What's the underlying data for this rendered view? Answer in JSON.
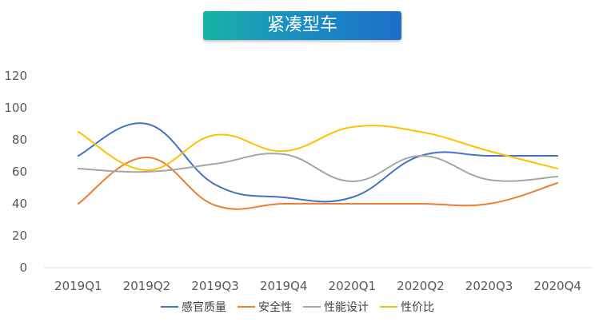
{
  "title": "紧凑型车",
  "chart_data": {
    "type": "line",
    "smooth": true,
    "categories": [
      "2019Q1",
      "2019Q2",
      "2019Q3",
      "2019Q4",
      "2020Q1",
      "2020Q2",
      "2020Q3",
      "2020Q4"
    ],
    "ylim": [
      0,
      120
    ],
    "yticks": [
      0,
      20,
      40,
      60,
      80,
      100,
      120
    ],
    "grid": false,
    "legend_position": "bottom",
    "series": [
      {
        "name": "感官质量",
        "color": "#4472c4",
        "values": [
          70,
          90,
          52,
          44,
          44,
          70,
          70,
          70
        ]
      },
      {
        "name": "安全性",
        "color": "#ed7d31",
        "values": [
          40,
          69,
          39,
          40,
          40,
          40,
          40,
          53
        ]
      },
      {
        "name": "性能设计",
        "color": "#a5a5a5",
        "values": [
          62,
          60,
          65,
          71,
          54,
          70,
          55,
          57
        ]
      },
      {
        "name": "性价比",
        "color": "#ffc000",
        "values": [
          85,
          61,
          83,
          73,
          88,
          85,
          73,
          62
        ]
      }
    ]
  }
}
